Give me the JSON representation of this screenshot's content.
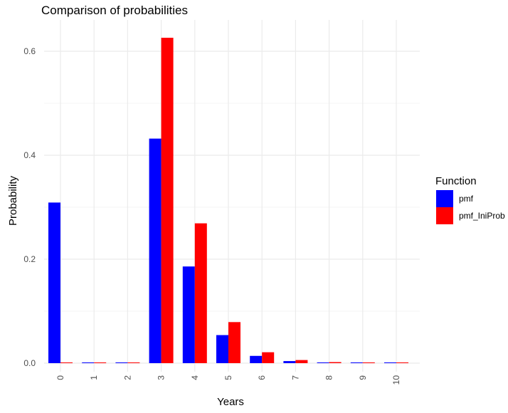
{
  "chart_data": {
    "type": "bar",
    "title": "Comparison of probabilities",
    "xlabel": "Years",
    "ylabel": "Probability",
    "categories": [
      "0",
      "1",
      "2",
      "3",
      "4",
      "5",
      "6",
      "7",
      "8",
      "9",
      "10"
    ],
    "series": [
      {
        "name": "pmf",
        "color": "#0000ff",
        "values": [
          0.309,
          0.001,
          0.0005,
          0.432,
          0.186,
          0.054,
          0.014,
          0.004,
          0.001,
          0.0003,
          0.0001
        ]
      },
      {
        "name": "pmf_IniProb",
        "color": "#ff0000",
        "values": [
          0.0,
          0.0,
          0.0,
          0.626,
          0.269,
          0.079,
          0.021,
          0.006,
          0.002,
          0.0005,
          0.0001
        ]
      }
    ],
    "ylim": [
      0,
      0.65
    ],
    "yticks": [
      {
        "value": 0.0,
        "label": "0.0"
      },
      {
        "value": 0.2,
        "label": "0.2"
      },
      {
        "value": 0.4,
        "label": "0.4"
      },
      {
        "value": 0.6,
        "label": "0.6"
      }
    ],
    "y_minor_ticks": [
      0.1,
      0.3,
      0.5
    ],
    "grid": true,
    "legend": {
      "title": "Function",
      "placement": "right"
    },
    "colors": {
      "grid_major": "#ebebeb",
      "grid_minor": "#f4f4f4",
      "tick_label": "#4d4d4d",
      "text": "#000000"
    }
  }
}
